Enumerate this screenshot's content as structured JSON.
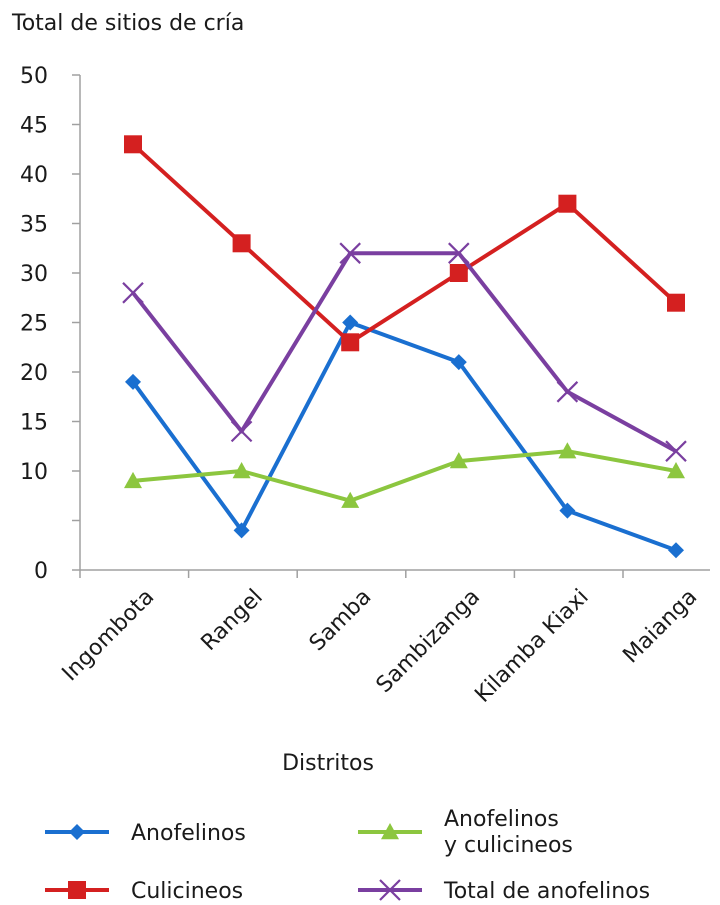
{
  "chart_data": {
    "type": "line",
    "title": "",
    "ylabel": "Total de sitios de cría",
    "xlabel": "Distritos",
    "categories": [
      "Ingombota",
      "Rangel",
      "Samba",
      "Sambizanga",
      "Kilamba Kiaxi",
      "Maianga"
    ],
    "ylim": [
      0,
      50
    ],
    "yticks": [
      0,
      10,
      15,
      20,
      25,
      30,
      35,
      40,
      45,
      50
    ],
    "grid": false,
    "legend_position": "bottom",
    "series": [
      {
        "name": "Anofelinos",
        "color": "#1a6fd0",
        "marker": "diamond",
        "values": [
          19,
          4,
          25,
          21,
          6,
          2
        ]
      },
      {
        "name": "Culicineos",
        "color": "#d42020",
        "marker": "square",
        "values": [
          43,
          33,
          23,
          30,
          37,
          27
        ]
      },
      {
        "name": "Anofelinos y culicineos",
        "color": "#8cc63f",
        "marker": "triangle",
        "values": [
          9,
          10,
          7,
          11,
          12,
          10
        ]
      },
      {
        "name": "Total de anofelinos",
        "color": "#7a3fa0",
        "marker": "x",
        "values": [
          28,
          14,
          32,
          32,
          18,
          12
        ]
      }
    ]
  }
}
